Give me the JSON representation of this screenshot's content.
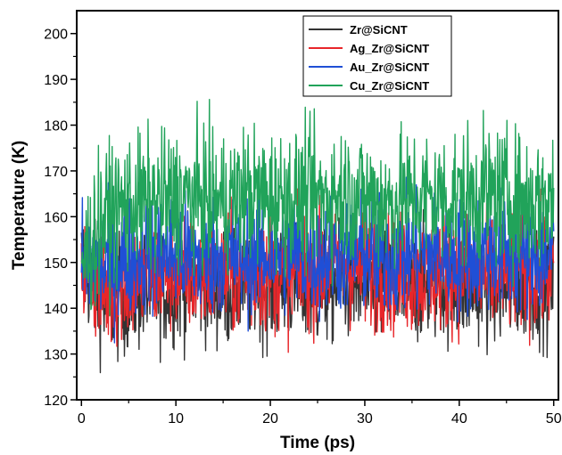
{
  "chart_data": {
    "type": "line",
    "title": "",
    "xlabel": "Time  (ps)",
    "ylabel": "Temperature (K)",
    "xlim": [
      -0.5,
      50.5
    ],
    "ylim": [
      120,
      205
    ],
    "x_ticks": [
      0,
      10,
      20,
      30,
      40,
      50
    ],
    "y_ticks": [
      120,
      130,
      140,
      150,
      160,
      170,
      180,
      190,
      200
    ],
    "grid": false,
    "legend_position": "top-right",
    "series": [
      {
        "name": "Zr@SiCNT",
        "color": "#333333",
        "x": [
          0,
          2.5,
          5,
          7.5,
          10,
          12.5,
          15,
          17.5,
          20,
          22.5,
          25,
          27.5,
          30,
          32.5,
          35,
          37.5,
          40,
          42.5,
          45,
          47.5,
          50
        ],
        "y": [
          150,
          141,
          143,
          144,
          145,
          146,
          144,
          146,
          145,
          145,
          144,
          146,
          145,
          144,
          145,
          146,
          145,
          145,
          144,
          146,
          145
        ]
      },
      {
        "name": "Ag_Zr@SiCNT",
        "color": "#e8262a",
        "x": [
          0,
          2.5,
          5,
          7.5,
          10,
          12.5,
          15,
          17.5,
          20,
          22.5,
          25,
          27.5,
          30,
          32.5,
          35,
          37.5,
          40,
          42.5,
          45,
          47.5,
          50
        ],
        "y": [
          150,
          143,
          146,
          147,
          148,
          147,
          148,
          147,
          148,
          147,
          149,
          150,
          148,
          148,
          147,
          148,
          148,
          147,
          148,
          148,
          148
        ]
      },
      {
        "name": "Au_Zr@SiCNT",
        "color": "#1f4fd6",
        "x": [
          0,
          2.5,
          5,
          7.5,
          10,
          12.5,
          15,
          17.5,
          20,
          22.5,
          25,
          27.5,
          30,
          32.5,
          35,
          37.5,
          40,
          42.5,
          45,
          47.5,
          50
        ],
        "y": [
          150,
          149,
          151,
          152,
          152,
          151,
          152,
          151,
          152,
          152,
          151,
          152,
          152,
          151,
          152,
          152,
          151,
          152,
          152,
          151,
          152
        ]
      },
      {
        "name": "Cu_Zr@SiCNT",
        "color": "#21a35a",
        "x": [
          0,
          2.5,
          5,
          7.5,
          10,
          12.5,
          15,
          17.5,
          20,
          22.5,
          25,
          27.5,
          30,
          32.5,
          35,
          37.5,
          40,
          42.5,
          45,
          47.5,
          50
        ],
        "y": [
          150,
          160,
          163,
          163,
          164,
          164,
          163,
          165,
          164,
          164,
          164,
          165,
          164,
          163,
          164,
          164,
          164,
          165,
          164,
          163,
          164
        ]
      }
    ]
  }
}
